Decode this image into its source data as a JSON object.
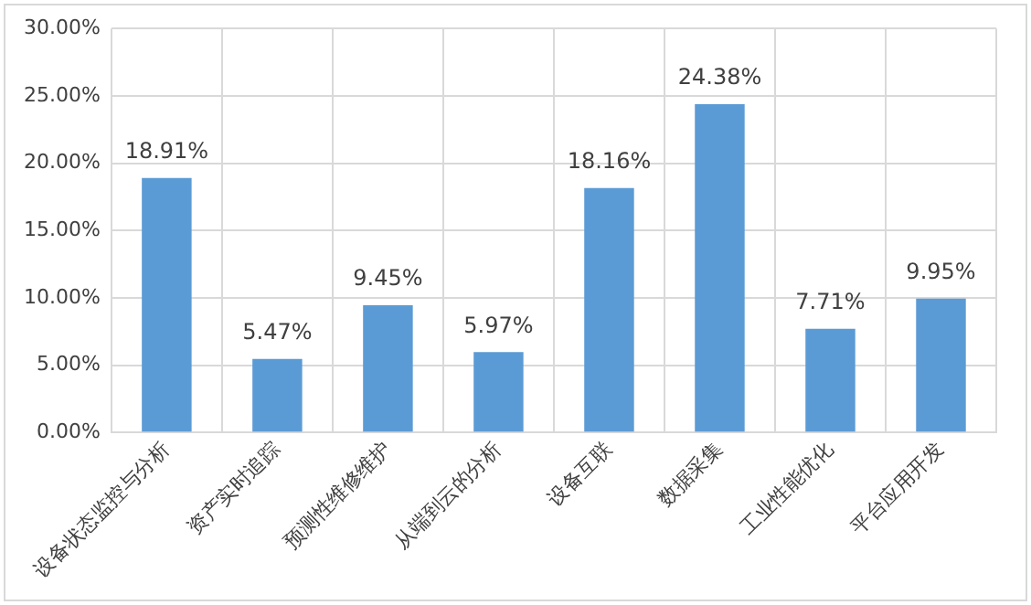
{
  "chart_data": {
    "type": "bar",
    "categories": [
      "设备状态监控与分析",
      "资产实时追踪",
      "预测性维修维护",
      "从端到云的分析",
      "设备互联",
      "数据采集",
      "工业性能优化",
      "平台应用开发"
    ],
    "values": [
      18.91,
      5.47,
      9.45,
      5.97,
      18.16,
      24.38,
      7.71,
      9.95
    ],
    "value_labels": [
      "18.91%",
      "5.47%",
      "9.45%",
      "5.97%",
      "18.16%",
      "24.38%",
      "7.71%",
      "9.95%"
    ],
    "color": "#5b9bd5",
    "ylim": [
      0,
      30
    ],
    "yticks": [
      {
        "value": 0,
        "label": "0.00%"
      },
      {
        "value": 5,
        "label": "5.00%"
      },
      {
        "value": 10,
        "label": "10.00%"
      },
      {
        "value": 15,
        "label": "15.00%"
      },
      {
        "value": 20,
        "label": "20.00%"
      },
      {
        "value": 25,
        "label": "25.00%"
      },
      {
        "value": 30,
        "label": "30.00%"
      }
    ],
    "grid": true
  }
}
